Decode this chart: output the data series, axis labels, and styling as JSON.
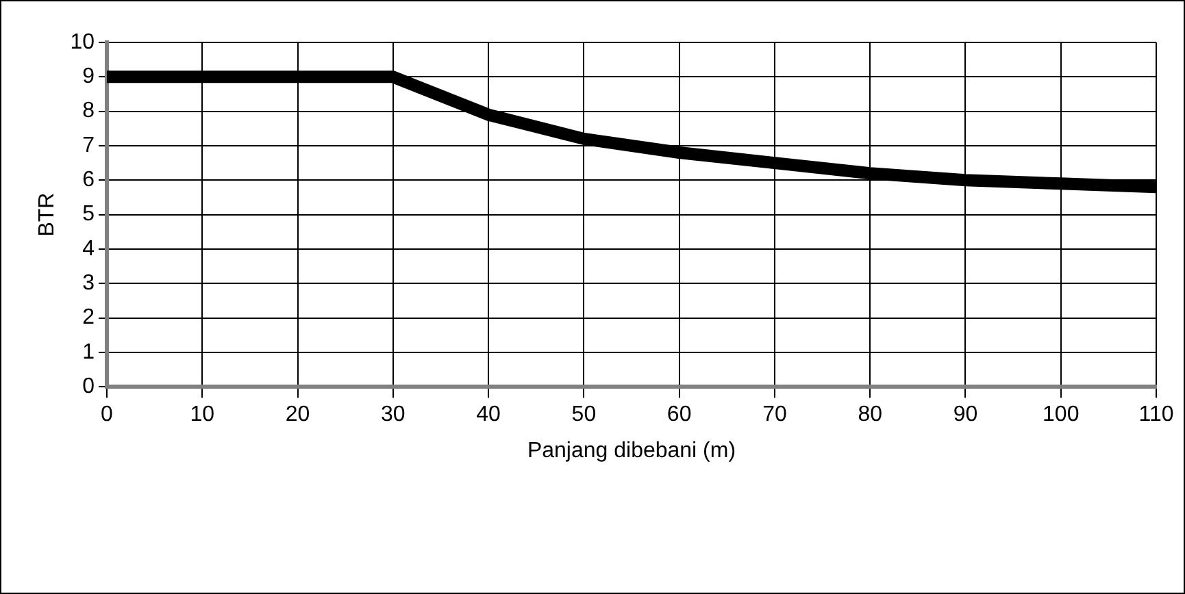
{
  "chart_data": {
    "type": "line",
    "xlabel": "Panjang dibebani (m)",
    "ylabel": "BTR",
    "x": [
      0,
      10,
      20,
      30,
      40,
      50,
      60,
      70,
      80,
      90,
      100,
      110
    ],
    "series": [
      {
        "color": "#000000",
        "values": [
          9,
          9,
          9,
          9,
          7.9,
          7.2,
          6.8,
          6.5,
          6.2,
          6.0,
          5.9,
          5.8
        ]
      }
    ],
    "xlim": [
      0,
      110
    ],
    "xticks": [
      0,
      10,
      20,
      30,
      40,
      50,
      60,
      70,
      80,
      90,
      100,
      110
    ],
    "ylim": [
      0,
      10
    ],
    "yticks": [
      0,
      1,
      2,
      3,
      4,
      5,
      6,
      7,
      8,
      9,
      10
    ],
    "grid": true,
    "legend": false,
    "marker": "none",
    "line_style": "solid"
  }
}
